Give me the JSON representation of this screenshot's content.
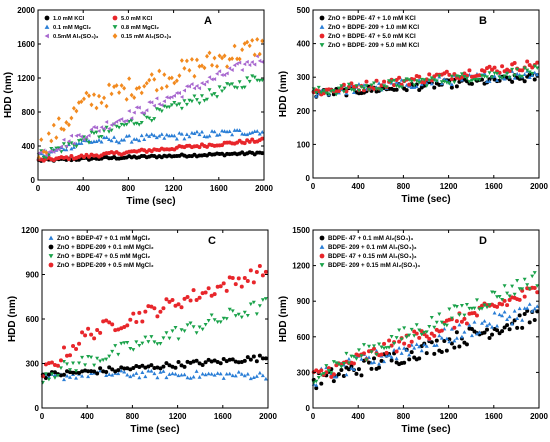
{
  "chart_data": [
    {
      "type": "scatter",
      "panel_label": "A",
      "xlabel": "Time (sec)",
      "ylabel": "HDD (nm)",
      "xlim": [
        0,
        2000
      ],
      "ylim": [
        0,
        2000
      ],
      "xticks": [
        0,
        400,
        800,
        1200,
        1600,
        2000
      ],
      "yticks": [
        0,
        400,
        800,
        1200,
        1600,
        2000
      ],
      "legend_columns": 2,
      "series": [
        {
          "name": "1.0 mM KCl",
          "color": "#000000",
          "marker": "circle",
          "x": [
            0,
            2000
          ],
          "y": [
            230,
            320
          ],
          "noise": 15
        },
        {
          "name": "5.0 mM KCl",
          "color": "#e8262b",
          "marker": "circle",
          "x": [
            0,
            2000
          ],
          "y": [
            230,
            470
          ],
          "noise": 20
        },
        {
          "name": "0.1 mM MgCl₂",
          "color": "#2a7ed6",
          "marker": "triangle-up",
          "x": [
            0,
            400,
            2000
          ],
          "y": [
            280,
            450,
            580
          ],
          "noise": 40
        },
        {
          "name": "0.8 mM MgCl₂",
          "color": "#1aa24a",
          "marker": "triangle-down",
          "x": [
            0,
            2000
          ],
          "y": [
            280,
            1230
          ],
          "noise": 60
        },
        {
          "name": "0.5mM Al₂(SO₄)₃",
          "color": "#a868cf",
          "marker": "triangle-left",
          "x": [
            0,
            2000
          ],
          "y": [
            300,
            1450
          ],
          "noise": 60
        },
        {
          "name": "0.15 mM Al₂(SO₄)₃",
          "color": "#f28a1f",
          "marker": "diamond",
          "x": [
            0,
            400,
            2000
          ],
          "y": [
            350,
            900,
            1600
          ],
          "noise": 130
        }
      ]
    },
    {
      "type": "scatter",
      "panel_label": "B",
      "xlabel": "Time (sec)",
      "ylabel": "HDD (nm)",
      "xlim": [
        0,
        2000
      ],
      "ylim": [
        0,
        500
      ],
      "xticks": [
        0,
        400,
        800,
        1200,
        1600,
        2000
      ],
      "yticks": [
        0,
        100,
        200,
        300,
        400,
        500
      ],
      "legend_columns": 1,
      "series": [
        {
          "name": "ZnO + BDPE- 47 + 1.0 mM KCl",
          "color": "#000000",
          "marker": "circle",
          "x": [
            0,
            2000
          ],
          "y": [
            250,
            300
          ],
          "noise": 12
        },
        {
          "name": "ZnO + BDPE- 209 + 1.0 mM KCl",
          "color": "#2a7ed6",
          "marker": "triangle-up",
          "x": [
            0,
            2000
          ],
          "y": [
            255,
            315
          ],
          "noise": 14
        },
        {
          "name": "ZnO + BDPE- 47 + 5.0 mM KCl",
          "color": "#e8262b",
          "marker": "circle",
          "x": [
            0,
            2000
          ],
          "y": [
            255,
            340
          ],
          "noise": 14
        },
        {
          "name": "ZnO + BDPE- 209 + 5.0 mM KCl",
          "color": "#1aa24a",
          "marker": "triangle-down",
          "x": [
            0,
            2000
          ],
          "y": [
            255,
            320
          ],
          "noise": 14
        }
      ]
    },
    {
      "type": "scatter",
      "panel_label": "C",
      "xlabel": "Time (sec)",
      "ylabel": "HDD (nm)",
      "xlim": [
        0,
        2000
      ],
      "ylim": [
        0,
        1200
      ],
      "xticks": [
        0,
        400,
        800,
        1200,
        1600,
        2000
      ],
      "yticks": [
        0,
        300,
        600,
        900,
        1200
      ],
      "legend_columns": 1,
      "series": [
        {
          "name": "ZnO + BDEP-47 + 0.1 mM MgCl₂",
          "color": "#2a7ed6",
          "marker": "triangle-up",
          "x": [
            0,
            400,
            2000
          ],
          "y": [
            200,
            230,
            220
          ],
          "noise": 25
        },
        {
          "name": "ZnO + BDPE-209 + 0.1 mM MgCl₂",
          "color": "#000000",
          "marker": "circle",
          "x": [
            0,
            2000
          ],
          "y": [
            220,
            340
          ],
          "noise": 20
        },
        {
          "name": "ZnO + BDPE-47 + 0.5 mM MgCl₂",
          "color": "#1aa24a",
          "marker": "triangle-down",
          "x": [
            0,
            2000
          ],
          "y": [
            220,
            700
          ],
          "noise": 50
        },
        {
          "name": "ZnO + BDPE-209 + 0.5 mM MgCl₂",
          "color": "#e8262b",
          "marker": "circle",
          "x": [
            0,
            400,
            2000
          ],
          "y": [
            230,
            500,
            930
          ],
          "noise": 50
        }
      ]
    },
    {
      "type": "scatter",
      "panel_label": "D",
      "xlabel": "Time (sec)",
      "ylabel": "HDD (nm)",
      "xlim": [
        0,
        2000
      ],
      "ylim": [
        0,
        1500
      ],
      "xticks": [
        0,
        400,
        800,
        1200,
        1600,
        2000
      ],
      "yticks": [
        0,
        300,
        600,
        900,
        1200,
        1500
      ],
      "legend_columns": 1,
      "series": [
        {
          "name": "BDPE- 47 + 0.1 mM Al₂(SO₄)₃",
          "color": "#000000",
          "marker": "circle",
          "x": [
            0,
            2000
          ],
          "y": [
            220,
            780
          ],
          "noise": 70
        },
        {
          "name": "BDPE- 209 + 0.1 mM Al₂(SO₄)₃",
          "color": "#2a7ed6",
          "marker": "triangle-up",
          "x": [
            0,
            2000
          ],
          "y": [
            250,
            850
          ],
          "noise": 70
        },
        {
          "name": "BDPE- 47 + 0.15 mM Al₂(SO₄)₃",
          "color": "#e8262b",
          "marker": "circle",
          "x": [
            0,
            2000
          ],
          "y": [
            260,
            1000
          ],
          "noise": 60
        },
        {
          "name": "BDPE- 209 + 0.15 mM Al₂(SO₄)₃",
          "color": "#1aa24a",
          "marker": "triangle-down",
          "x": [
            0,
            2000
          ],
          "y": [
            280,
            1100
          ],
          "noise": 70
        }
      ]
    }
  ]
}
